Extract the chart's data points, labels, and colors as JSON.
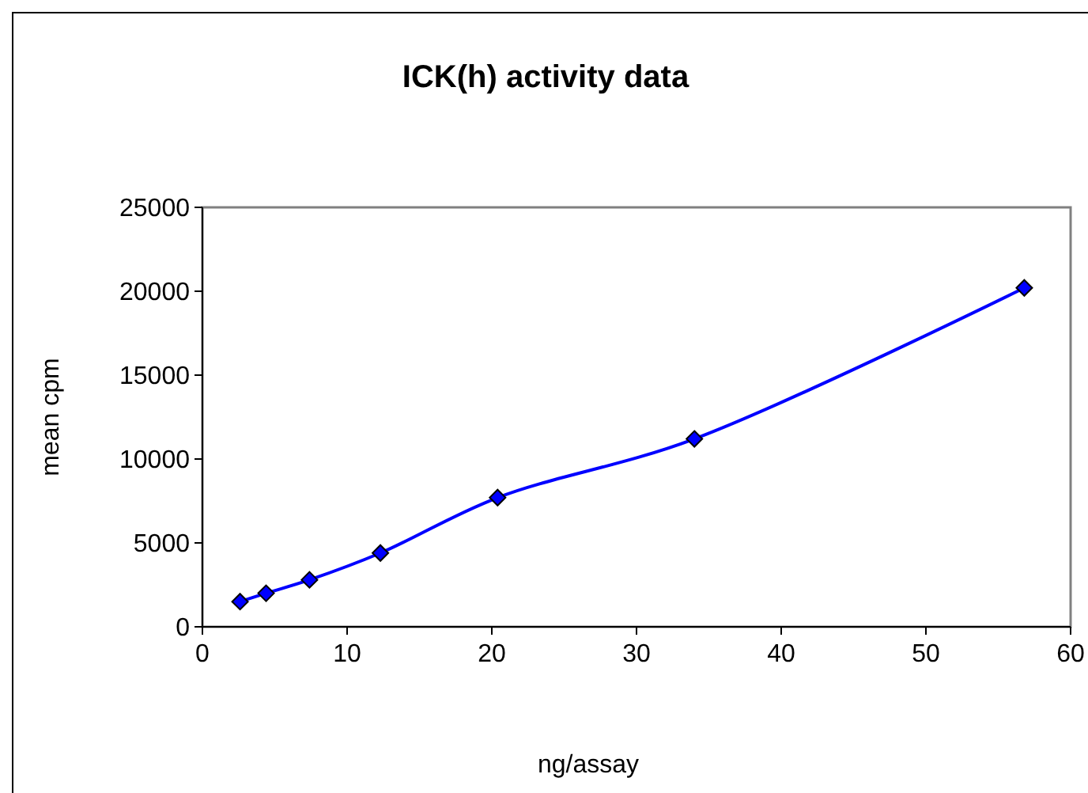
{
  "chart_data": {
    "type": "line",
    "title": "ICK(h) activity data",
    "xlabel": "ng/assay",
    "ylabel": "mean cpm",
    "x": [
      2.6,
      4.4,
      7.4,
      12.3,
      20.4,
      34.0,
      56.8
    ],
    "series": [
      {
        "color": "#0000ff",
        "values": [
          1500,
          2000,
          2800,
          4400,
          7700,
          11200,
          20200
        ]
      }
    ],
    "xlim": [
      0,
      60
    ],
    "xticks": [
      0,
      10,
      20,
      30,
      40,
      50,
      60
    ],
    "ylim": [
      0,
      25000
    ],
    "yticks": [
      0,
      5000,
      10000,
      15000,
      20000,
      25000
    ],
    "grid": false,
    "marker": "diamond",
    "line_style": "solid"
  }
}
